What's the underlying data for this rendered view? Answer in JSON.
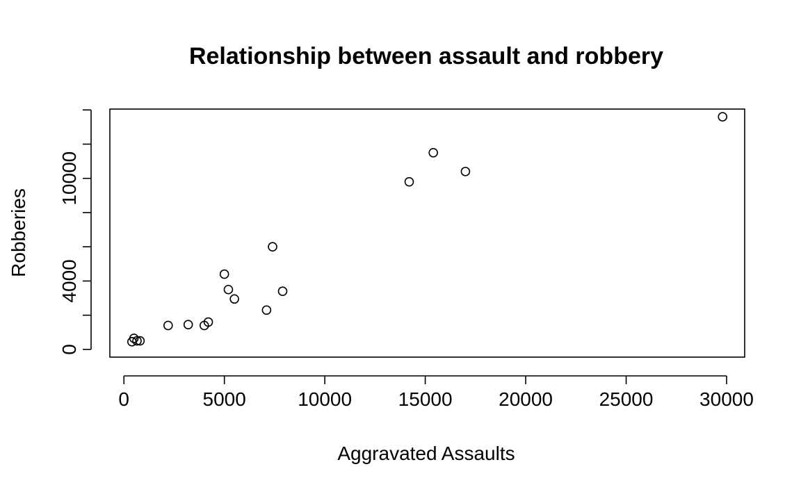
{
  "chart_data": {
    "type": "scatter",
    "title": "Relationship between assault and robbery",
    "xlabel": "Aggravated Assaults",
    "ylabel": "Robberies",
    "xlim": [
      -700,
      30900
    ],
    "ylim": [
      -450,
      14050
    ],
    "x_ticks": [
      0,
      5000,
      10000,
      15000,
      20000,
      25000,
      30000
    ],
    "x_tick_labels": [
      "0",
      "5000",
      "10000",
      "15000",
      "20000",
      "25000",
      "30000"
    ],
    "y_ticks": [
      0,
      2000,
      4000,
      6000,
      8000,
      10000,
      12000,
      14000
    ],
    "y_tick_labels": [
      "0",
      "",
      "4000",
      "",
      "",
      "10000",
      "",
      ""
    ],
    "grid": false,
    "legend": "none",
    "points": [
      {
        "x": 29800,
        "y": 13600
      },
      {
        "x": 15400,
        "y": 11500
      },
      {
        "x": 17000,
        "y": 10400
      },
      {
        "x": 14200,
        "y": 9800
      },
      {
        "x": 7400,
        "y": 6000
      },
      {
        "x": 5000,
        "y": 4400
      },
      {
        "x": 5200,
        "y": 3500
      },
      {
        "x": 7900,
        "y": 3400
      },
      {
        "x": 5500,
        "y": 2950
      },
      {
        "x": 7100,
        "y": 2300
      },
      {
        "x": 4200,
        "y": 1600
      },
      {
        "x": 4000,
        "y": 1400
      },
      {
        "x": 3200,
        "y": 1450
      },
      {
        "x": 2200,
        "y": 1400
      },
      {
        "x": 800,
        "y": 500
      },
      {
        "x": 500,
        "y": 650
      },
      {
        "x": 400,
        "y": 450
      },
      {
        "x": 650,
        "y": 500
      }
    ]
  }
}
